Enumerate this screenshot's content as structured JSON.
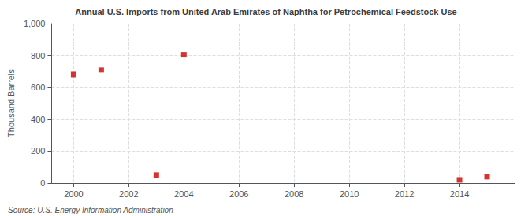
{
  "chart_data": {
    "type": "scatter",
    "title": "Annual U.S. Imports from United Arab Emirates of Naphtha for Petrochemical Feedstock Use",
    "ylabel": "Thousand Barrels",
    "annotation": "Source: U.S. Energy Information Administration",
    "x": [
      2000,
      2001,
      2003,
      2004,
      2014,
      2015
    ],
    "values": [
      680,
      710,
      50,
      805,
      20,
      40
    ],
    "color": "#cc0000",
    "marker": "square",
    "xlim": [
      1999.2,
      2016.0
    ],
    "xticks": [
      2000,
      2002,
      2004,
      2006,
      2008,
      2010,
      2012,
      2014
    ],
    "ylim": [
      0,
      1000
    ],
    "yticks": [
      0,
      200,
      400,
      600,
      800,
      {
        "value": 1000,
        "label": "1,000"
      }
    ],
    "grid": true
  }
}
